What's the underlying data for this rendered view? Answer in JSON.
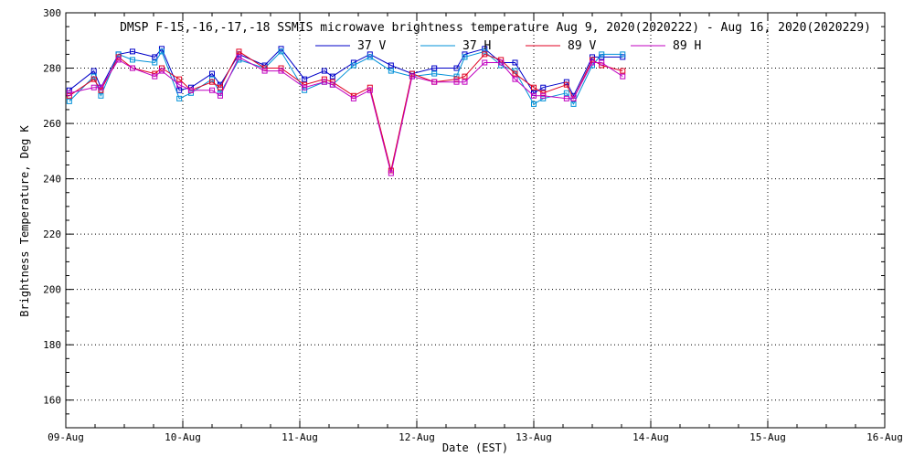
{
  "chart_data": {
    "type": "line",
    "title": "DMSP F-15,-16,-17,-18 SSMIS microwave brightness temperature Aug  9, 2020(2020222) - Aug 16, 2020(2020229)",
    "xlabel": "Date (EST)",
    "ylabel": "Brightness Temperature, Deg K",
    "ylim": [
      150,
      300
    ],
    "xlim": [
      0,
      7
    ],
    "y_ticks": [
      160,
      180,
      200,
      220,
      240,
      260,
      280,
      300
    ],
    "x_ticks": [
      0,
      1,
      2,
      3,
      4,
      5,
      6,
      7
    ],
    "x_tick_labels": [
      "09-Aug",
      "10-Aug",
      "11-Aug",
      "12-Aug",
      "13-Aug",
      "14-Aug",
      "15-Aug",
      "16-Aug"
    ],
    "grid": true,
    "legend_position": "top-center",
    "x": [
      0.03,
      0.24,
      0.3,
      0.45,
      0.57,
      0.76,
      0.82,
      0.97,
      1.07,
      1.25,
      1.32,
      1.48,
      1.7,
      1.84,
      2.04,
      2.21,
      2.28,
      2.46,
      2.6,
      2.78,
      2.96,
      3.15,
      3.34,
      3.41,
      3.58,
      3.72,
      3.84,
      4.0,
      4.08,
      4.28,
      4.34,
      4.5,
      4.58,
      4.76
    ],
    "series": [
      {
        "name": "37 V",
        "color": "#0000c8",
        "values": [
          272,
          279,
          273,
          285,
          286,
          284,
          287,
          272,
          273,
          278,
          274,
          285,
          281,
          287,
          276,
          279,
          277,
          282,
          285,
          281,
          278,
          280,
          280,
          285,
          287,
          282,
          282,
          271,
          273,
          275,
          270,
          284,
          284,
          284
        ]
      },
      {
        "name": "37 H",
        "color": "#0090d8",
        "values": [
          268,
          277,
          270,
          285,
          283,
          282,
          286,
          269,
          271,
          276,
          271,
          283,
          280,
          286,
          272,
          275,
          274,
          281,
          284,
          279,
          277,
          278,
          277,
          284,
          286,
          281,
          279,
          267,
          269,
          271,
          267,
          281,
          285,
          285
        ]
      },
      {
        "name": "89 V",
        "color": "#e00020",
        "values": [
          270,
          276,
          272,
          284,
          280,
          278,
          280,
          276,
          272,
          275,
          273,
          286,
          280,
          280,
          274,
          276,
          275,
          270,
          273,
          243,
          278,
          275,
          276,
          277,
          285,
          283,
          278,
          273,
          271,
          274,
          269,
          283,
          281,
          279
        ]
      },
      {
        "name": "89 H",
        "color": "#c000c0",
        "values": [
          271,
          273,
          273,
          283,
          280,
          277,
          279,
          274,
          272,
          272,
          270,
          284,
          279,
          279,
          273,
          275,
          274,
          269,
          272,
          242,
          277,
          275,
          275,
          275,
          282,
          282,
          276,
          270,
          270,
          269,
          269,
          282,
          282,
          277
        ]
      }
    ]
  }
}
